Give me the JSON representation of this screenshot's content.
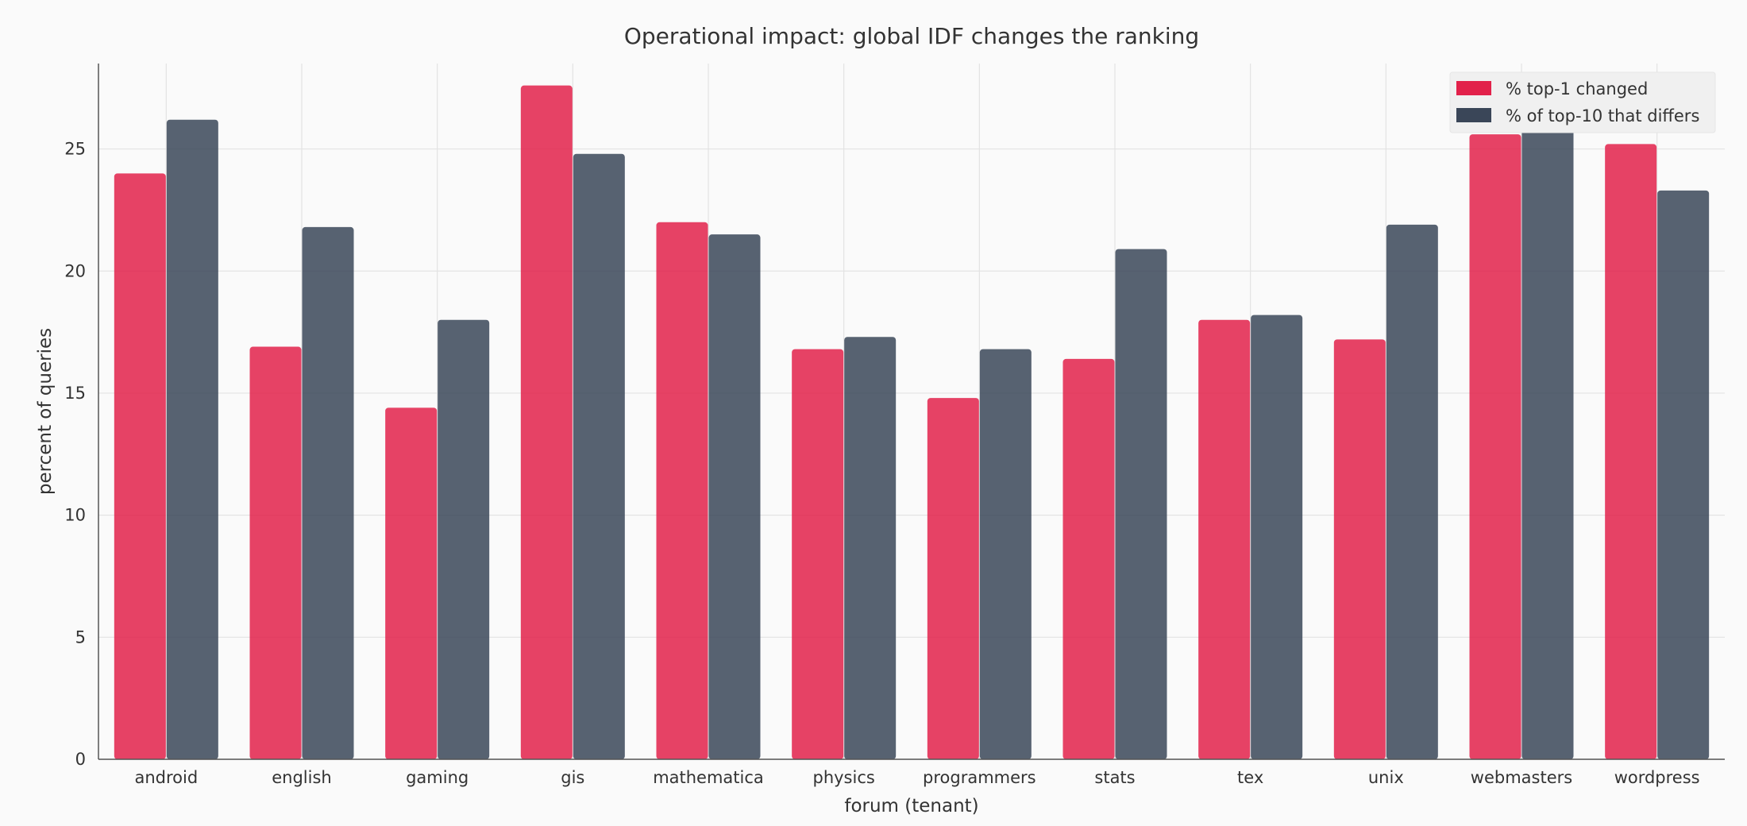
{
  "chart_data": {
    "type": "bar",
    "title": "Operational impact: global IDF changes the ranking",
    "xlabel": "forum (tenant)",
    "ylabel": "percent of queries",
    "ylim": [
      0,
      28.5
    ],
    "yticks": [
      0,
      5,
      10,
      15,
      20,
      25
    ],
    "grid": true,
    "legend_position": "top-right",
    "categories": [
      "android",
      "english",
      "gaming",
      "gis",
      "mathematica",
      "physics",
      "programmers",
      "stats",
      "tex",
      "unix",
      "webmasters",
      "wordpress"
    ],
    "series": [
      {
        "name": "% top-1 changed",
        "color": "#e2214a",
        "values": [
          24.0,
          16.9,
          14.4,
          27.6,
          22.0,
          16.8,
          14.8,
          16.4,
          18.0,
          17.2,
          25.6,
          25.2
        ]
      },
      {
        "name": "% of top-10 that differs",
        "color": "#3a4658",
        "values": [
          26.2,
          21.8,
          18.0,
          24.8,
          21.5,
          17.3,
          16.8,
          20.9,
          18.2,
          21.9,
          27.2,
          23.3
        ]
      }
    ]
  }
}
